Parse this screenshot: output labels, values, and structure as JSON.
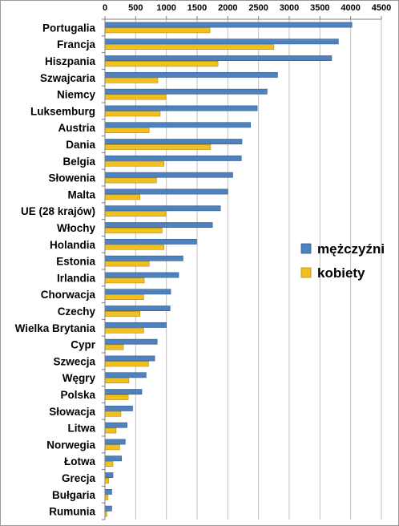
{
  "chart_data": {
    "type": "bar",
    "orientation": "horizontal",
    "xlim": [
      0,
      4500
    ],
    "x_ticks": [
      0,
      500,
      1000,
      1500,
      2000,
      2500,
      3000,
      3500,
      4000,
      4500
    ],
    "x_axis_position": "top",
    "grid": "vertical",
    "legend_position": "right",
    "categories": [
      "Portugalia",
      "Francja",
      "Hiszpania",
      "Szwajcaria",
      "Niemcy",
      "Luksemburg",
      "Austria",
      "Dania",
      "Belgia",
      "Słowenia",
      "Malta",
      "UE (28 krajów)",
      "Włochy",
      "Holandia",
      "Estonia",
      "Irlandia",
      "Chorwacja",
      "Czechy",
      "Wielka Brytania",
      "Cypr",
      "Szwecja",
      "Węgry",
      "Polska",
      "Słowacja",
      "Litwa",
      "Norwegia",
      "Łotwa",
      "Grecja",
      "Bułgaria",
      "Rumunia"
    ],
    "series": [
      {
        "name": "mężczyźni",
        "color": "#4f81bd",
        "values": [
          4020,
          3800,
          3690,
          2810,
          2640,
          2480,
          2370,
          2230,
          2220,
          2080,
          2000,
          1880,
          1750,
          1490,
          1270,
          1200,
          1070,
          1060,
          1000,
          850,
          810,
          670,
          600,
          450,
          360,
          330,
          270,
          130,
          110,
          110
        ]
      },
      {
        "name": "kobiety",
        "color": "#f0c020",
        "values": [
          1710,
          2750,
          1840,
          860,
          990,
          900,
          720,
          1720,
          960,
          840,
          570,
          990,
          930,
          960,
          720,
          640,
          630,
          570,
          630,
          300,
          710,
          390,
          380,
          260,
          180,
          240,
          130,
          60,
          50,
          30
        ]
      }
    ]
  }
}
